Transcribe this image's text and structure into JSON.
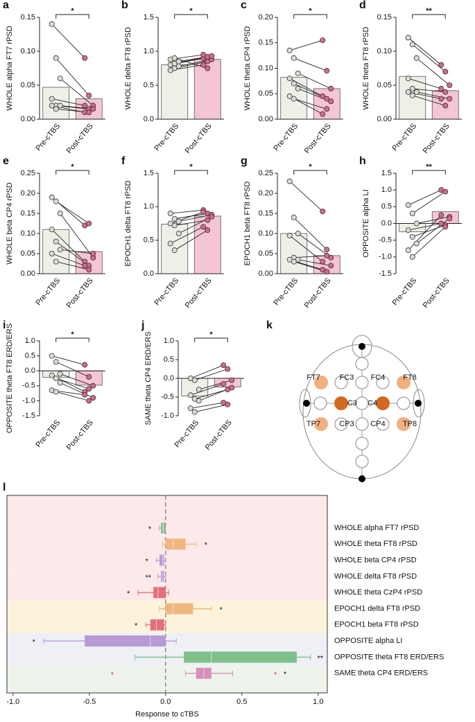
{
  "chart_data": [
    {
      "type": "bar",
      "panel_label": "a",
      "ylabel": "WHOLE alpha FT7 rPSD",
      "categories": [
        "Pre-cTBS",
        "Post-cTBS"
      ],
      "values": [
        0.047,
        0.03
      ],
      "colors": [
        "#eef0e8",
        "#f4c6d3"
      ],
      "point_colors": [
        "#d9dbd2",
        "#d4698c"
      ],
      "points": [
        [
          0.14,
          0.09,
          0.06,
          0.03,
          0.02,
          0.02,
          0.02,
          0.015
        ],
        [
          0.09,
          0.035,
          0.02,
          0.02,
          0.015,
          0.015,
          0.01,
          0.01
        ]
      ],
      "ylim": [
        0,
        0.15
      ],
      "yticks": [
        {
          "value": 0,
          "label": "0.00"
        },
        0.05,
        {
          "value": 0.1,
          "label": "0.10"
        },
        0.15
      ],
      "annotation": "*"
    },
    {
      "type": "bar",
      "panel_label": "b",
      "ylabel": "WHOLE delta FT8 rPSD",
      "categories": [
        "Pre-cTBS",
        "Post-cTBS"
      ],
      "values": [
        0.8,
        0.88
      ],
      "colors": [
        "#eef0e8",
        "#f4c6d3"
      ],
      "point_colors": [
        "#d9dbd2",
        "#d4698c"
      ],
      "points": [
        [
          0.72,
          0.75,
          0.78,
          0.8,
          0.82,
          0.85,
          0.88,
          0.9
        ],
        [
          0.8,
          0.85,
          0.88,
          0.9,
          0.92,
          0.93,
          0.95,
          0.75
        ]
      ],
      "ylim": [
        0,
        1.5
      ],
      "yticks": [
        {
          "value": 0,
          "label": "0.0"
        },
        0.5,
        {
          "value": 1,
          "label": "1.0"
        },
        1.5
      ],
      "annotation": "*"
    },
    {
      "type": "bar",
      "panel_label": "c",
      "ylabel": "WHOLE theta CP4 rPSD",
      "categories": [
        "Pre-cTBS",
        "Post-cTBS"
      ],
      "values": [
        0.082,
        0.06
      ],
      "colors": [
        "#eef0e8",
        "#f4c6d3"
      ],
      "point_colors": [
        "#d9dbd2",
        "#d4698c"
      ],
      "points": [
        [
          0.135,
          0.12,
          0.09,
          0.08,
          0.07,
          0.06,
          0.045,
          0.04
        ],
        [
          0.155,
          0.095,
          0.06,
          0.045,
          0.04,
          0.035,
          0.01,
          0.02
        ]
      ],
      "ylim": [
        0,
        0.2
      ],
      "yticks": [
        {
          "value": 0,
          "label": "0.00"
        },
        0.05,
        {
          "value": 0.1,
          "label": "0.10"
        },
        0.15,
        {
          "value": 0.2,
          "label": "0.20"
        }
      ],
      "annotation": "*"
    },
    {
      "type": "bar",
      "panel_label": "d",
      "ylabel": "WHOLE theta FT8 rPSD",
      "categories": [
        "Pre-cTBS",
        "Post-cTBS"
      ],
      "values": [
        0.063,
        0.042
      ],
      "colors": [
        "#eef0e8",
        "#f4c6d3"
      ],
      "point_colors": [
        "#d9dbd2",
        "#d4698c"
      ],
      "points": [
        [
          0.12,
          0.11,
          0.09,
          0.06,
          0.045,
          0.04,
          0.04,
          0.035
        ],
        [
          0.08,
          0.07,
          0.05,
          0.045,
          0.04,
          0.03,
          0.03,
          0.02
        ]
      ],
      "ylim": [
        0,
        0.15
      ],
      "yticks": [
        {
          "value": 0,
          "label": "0.00"
        },
        0.05,
        {
          "value": 0.1,
          "label": "0.10"
        },
        0.15
      ],
      "annotation": "**"
    },
    {
      "type": "bar",
      "panel_label": "e",
      "ylabel": "WHOLE beta CP4 rPSD",
      "categories": [
        "Pre-cTBS",
        "Post-cTBS"
      ],
      "values": [
        0.11,
        0.055
      ],
      "colors": [
        "#eef0e8",
        "#f4c6d3"
      ],
      "point_colors": [
        "#d9dbd2",
        "#d4698c"
      ],
      "points": [
        [
          0.19,
          0.18,
          0.15,
          0.11,
          0.08,
          0.06,
          0.05,
          0.03
        ],
        [
          0.12,
          0.125,
          0.04,
          0.03,
          0.02,
          0.05,
          0.02,
          0.01
        ]
      ],
      "ylim": [
        0,
        0.25
      ],
      "yticks": [
        {
          "value": 0,
          "label": "0.00"
        },
        0.05,
        {
          "value": 0.1,
          "label": "0.10"
        },
        0.15,
        {
          "value": 0.2,
          "label": "0.20"
        },
        0.25
      ],
      "annotation": "*"
    },
    {
      "type": "bar",
      "panel_label": "f",
      "ylabel": "EPOCH1 delta FT8 rPSD",
      "categories": [
        "Pre-cTBS",
        "Post-cTBS"
      ],
      "values": [
        0.74,
        0.86
      ],
      "colors": [
        "#eef0e8",
        "#f4c6d3"
      ],
      "point_colors": [
        "#d9dbd2",
        "#d4698c"
      ],
      "points": [
        [
          0.9,
          0.82,
          0.78,
          0.75,
          0.72,
          0.6,
          0.45,
          0.35
        ],
        [
          0.95,
          0.9,
          0.88,
          0.92,
          0.8,
          0.85,
          0.7,
          0.65
        ]
      ],
      "ylim": [
        0,
        1.5
      ],
      "yticks": [
        {
          "value": 0,
          "label": "0.0"
        },
        0.5,
        {
          "value": 1,
          "label": "1.0"
        },
        1.5
      ],
      "annotation": "*"
    },
    {
      "type": "bar",
      "panel_label": "g",
      "ylabel": "EPOCH1 beta FT8 rPSD",
      "categories": [
        "Pre-cTBS",
        "Post-cTBS"
      ],
      "values": [
        0.1,
        0.045
      ],
      "colors": [
        "#eef0e8",
        "#f4c6d3"
      ],
      "point_colors": [
        "#d9dbd2",
        "#d4698c"
      ],
      "points": [
        [
          0.23,
          0.14,
          0.1,
          0.095,
          0.04,
          0.035,
          0.035,
          0.03
        ],
        [
          0.155,
          0.06,
          0.04,
          0.03,
          0.045,
          0.02,
          0.01,
          0.005
        ]
      ],
      "ylim": [
        0,
        0.25
      ],
      "yticks": [
        {
          "value": 0,
          "label": "0.00"
        },
        0.05,
        {
          "value": 0.1,
          "label": "0.10"
        },
        0.15,
        {
          "value": 0.2,
          "label": "0.20"
        },
        0.25
      ],
      "annotation": "*"
    },
    {
      "type": "bar",
      "panel_label": "h",
      "ylabel": "OPPOSITE alpha LI",
      "categories": [
        "Pre-cTBS",
        "Post-cTBS"
      ],
      "values": [
        -0.25,
        0.35
      ],
      "colors": [
        "#eef0e8",
        "#f4c6d3"
      ],
      "point_colors": [
        "#d9dbd2",
        "#d4698c"
      ],
      "points": [
        [
          0.55,
          0.3,
          0.0,
          -0.2,
          -0.4,
          -0.6,
          -0.8,
          -1.0
        ],
        [
          1.0,
          0.95,
          0.2,
          0.0,
          -0.05,
          0.15,
          0.25,
          -0.1
        ]
      ],
      "ylim": [
        -1.5,
        1.5
      ],
      "yticks": [
        -1.5,
        {
          "value": -1,
          "label": "-1.0"
        },
        -0.5,
        {
          "value": 0,
          "label": "0.0"
        },
        0.5,
        {
          "value": 1,
          "label": "1.0"
        },
        1.5
      ],
      "annotation": "**"
    },
    {
      "type": "bar",
      "panel_label": "i",
      "ylabel": "OPPOSITE theta FT8 ERD/ERS",
      "categories": [
        "Pre-cTBS",
        "Post-cTBS"
      ],
      "values": [
        -0.22,
        -0.48
      ],
      "colors": [
        "#eef0e8",
        "#f4c6d3"
      ],
      "point_colors": [
        "#d9dbd2",
        "#d4698c"
      ],
      "points": [
        [
          0.5,
          0.3,
          -0.1,
          -0.15,
          -0.25,
          -0.4,
          -0.65,
          -0.7
        ],
        [
          0.2,
          -0.2,
          -0.5,
          -0.7,
          -0.6,
          -0.9,
          -0.8,
          -1.0
        ]
      ],
      "ylim": [
        -1.5,
        1
      ],
      "yticks": [
        -1.5,
        {
          "value": -1,
          "label": "-1.0"
        },
        -0.5,
        {
          "value": 0,
          "label": "0.0"
        },
        0.5,
        {
          "value": 1,
          "label": "1.0"
        }
      ],
      "annotation": "*"
    },
    {
      "type": "bar",
      "panel_label": "j",
      "ylabel": "SAME theta CP4 ERD/ERS",
      "categories": [
        "Pre-cTBS",
        "Post-cTBS"
      ],
      "values": [
        -0.47,
        -0.23
      ],
      "colors": [
        "#eef0e8",
        "#f4c6d3"
      ],
      "point_colors": [
        "#d9dbd2",
        "#d4698c"
      ],
      "points": [
        [
          0.0,
          -0.05,
          -0.3,
          -0.45,
          -0.55,
          -0.6,
          -0.8,
          -0.9
        ],
        [
          0.35,
          0.25,
          -0.05,
          -0.15,
          -0.3,
          -0.25,
          -0.65,
          -0.7
        ]
      ],
      "ylim": [
        -1,
        1
      ],
      "yticks": [
        {
          "value": -1,
          "label": "-1.0"
        },
        -0.5,
        {
          "value": 0,
          "label": "0.0"
        },
        0.5,
        {
          "value": 1,
          "label": "1.0"
        }
      ],
      "annotation": "*"
    },
    {
      "type": "box",
      "panel_label": "l",
      "xlabel": "Response to cTBS",
      "categories": [
        "WHOLE alpha FT7 rPSD",
        "WHOLE theta FT8 rPSD",
        "WHOLE beta CP4 rPSD",
        "WHOLE delta FT8 rPSD",
        "WHOLE theta CzP4 rPSD",
        "EPOCH1 delta FT8 rPSD",
        "EPOCH1 beta FT8 rPSD",
        "OPPOSITE alpha LI",
        "OPPOSITE theta FT8 ERD/ERS",
        "SAME theta CP4 ERD/ERS"
      ],
      "min": [
        -0.04,
        -0.02,
        -0.06,
        -0.05,
        -0.18,
        -0.04,
        -0.13,
        -0.8,
        -0.2,
        0.13
      ],
      "q1": [
        -0.03,
        0.0,
        -0.04,
        -0.03,
        -0.08,
        0.0,
        -0.1,
        -0.53,
        0.12,
        0.2
      ],
      "median": [
        -0.015,
        0.05,
        -0.02,
        -0.02,
        -0.05,
        0.05,
        -0.06,
        -0.1,
        0.3,
        0.25
      ],
      "q3": [
        0.0,
        0.13,
        -0.01,
        -0.01,
        0.0,
        0.18,
        -0.01,
        0.0,
        0.86,
        0.3
      ],
      "max": [
        0.0,
        0.2,
        0.0,
        0.0,
        0.02,
        0.3,
        0.0,
        0.07,
        0.95,
        0.44
      ],
      "outliers": [
        [],
        [],
        [],
        [],
        [],
        [],
        [],
        [],
        [],
        [
          -0.35,
          0.72
        ]
      ],
      "annotations": [
        "*",
        "*",
        "*",
        "**",
        "*",
        "*",
        "*",
        "*",
        "**",
        "*"
      ],
      "colors": [
        "#8fbf95",
        "#f0b680",
        "#b79ad6",
        "#b79ad6",
        "#e2707a",
        "#f0b680",
        "#e2707a",
        "#b79ad6",
        "#7fbf8a",
        "#d98fb8"
      ],
      "band_colors": [
        "#fde9ea",
        "#fde9ea",
        "#fde9ea",
        "#fde9ea",
        "#fde9ea",
        "#fdf3da",
        "#fdf3da",
        "#eef0f5",
        "#eef0f5",
        "#eef4ec"
      ],
      "xlim": [
        -1.04,
        1.06
      ],
      "xticks": [
        {
          "value": -1,
          "label": "-1.0"
        },
        -0.5,
        {
          "value": 0,
          "label": "0.0"
        },
        0.5,
        {
          "value": 1,
          "label": "1.0"
        }
      ]
    }
  ],
  "electrode_map": {
    "panel_label": "k",
    "labels": [
      "FT7",
      "FC3",
      "FC4",
      "FT8",
      "C3",
      "C4",
      "TP7",
      "CP3",
      "CP4",
      "TP8"
    ]
  }
}
